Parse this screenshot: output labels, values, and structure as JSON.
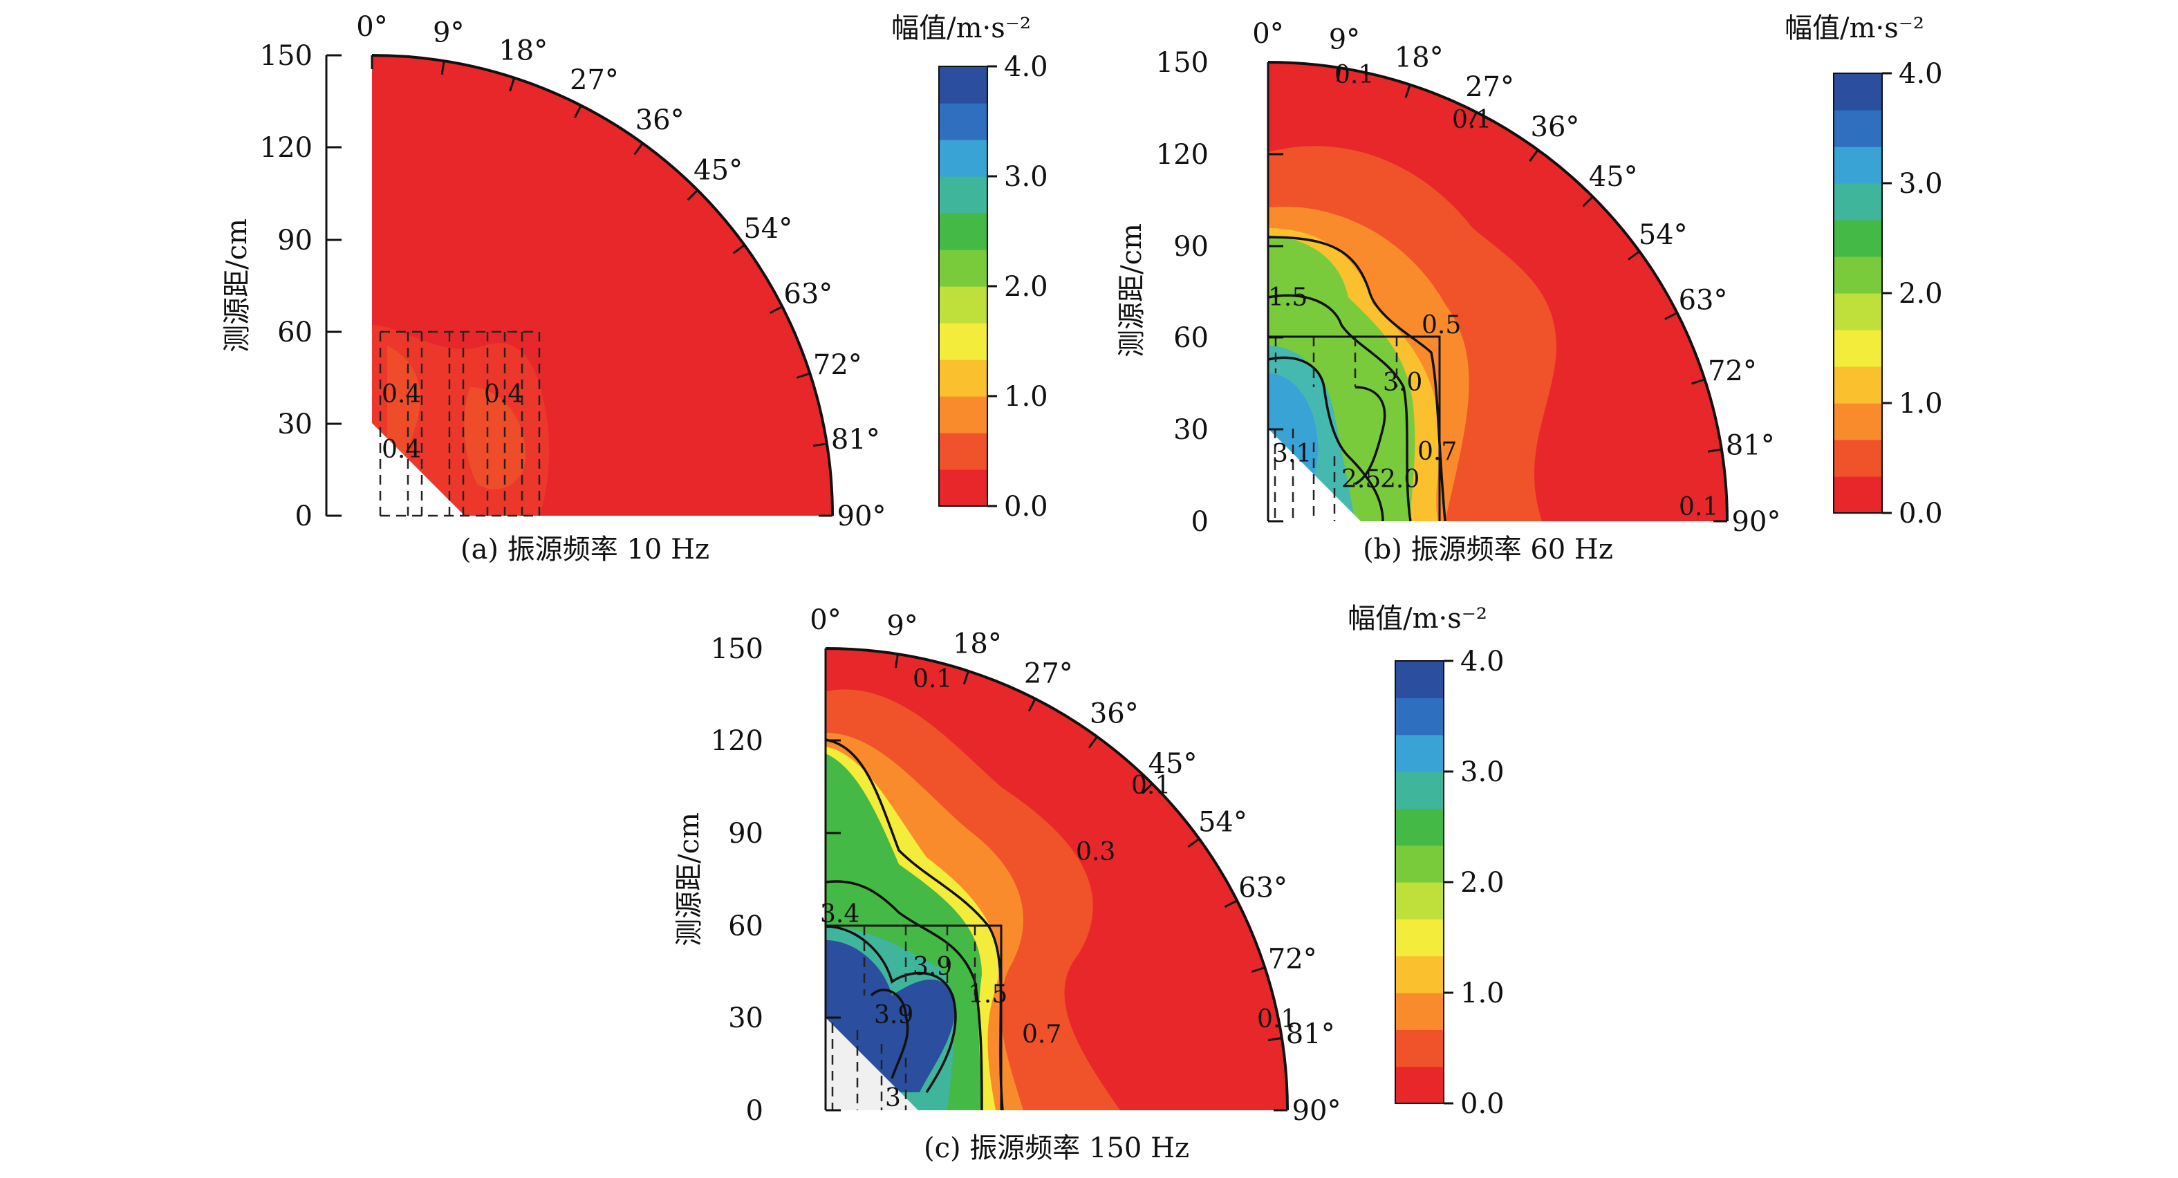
{
  "colorbar": {
    "title": "幅值/m·s⁻²",
    "ticks": [
      "4.0",
      "3.0",
      "2.0",
      "1.0",
      "0.0"
    ],
    "stops": [
      "#e8272a",
      "#f0522a",
      "#f98b2c",
      "#fbc02d",
      "#f4ec3a",
      "#bfe03a",
      "#7acb3c",
      "#45b945",
      "#3fb59c",
      "#3aa3d6",
      "#2f6fc0",
      "#2b4e9e"
    ]
  },
  "axes": {
    "ylabel": "测源距/cm",
    "r_ticks": [
      "0",
      "30",
      "60",
      "90",
      "120",
      "150"
    ],
    "angle_labels": [
      "0°",
      "9°",
      "18°",
      "27°",
      "36°",
      "45°",
      "54°",
      "63°",
      "72°",
      "81°",
      "90°"
    ]
  },
  "chart_data": [
    {
      "type": "heatmap",
      "title": "(a) 振源频率 10 Hz",
      "rlim": [
        0,
        150
      ],
      "theta_lim_deg": [
        0,
        90
      ],
      "colorbar_range": [
        0.0,
        4.0
      ],
      "contour_labels": [
        "0.4",
        "0.4",
        "0.4"
      ]
    },
    {
      "type": "heatmap",
      "title": "(b) 振源频率 60 Hz",
      "rlim": [
        0,
        150
      ],
      "theta_lim_deg": [
        0,
        90
      ],
      "colorbar_range": [
        0.0,
        4.0
      ],
      "contour_labels": [
        "0.1",
        "0.1",
        "1.5",
        "0.5",
        "3.0",
        "0.7",
        "3.1",
        "2.5",
        "2.0",
        "0.1"
      ]
    },
    {
      "type": "heatmap",
      "title": "(c) 振源频率 150 Hz",
      "rlim": [
        0,
        150
      ],
      "theta_lim_deg": [
        0,
        90
      ],
      "colorbar_range": [
        0.0,
        4.0
      ],
      "contour_labels": [
        "0.1",
        "0.1",
        "0.3",
        "3.4",
        "3.9",
        "3.9",
        "1.5",
        "0.7",
        "3",
        "0.1"
      ]
    }
  ]
}
